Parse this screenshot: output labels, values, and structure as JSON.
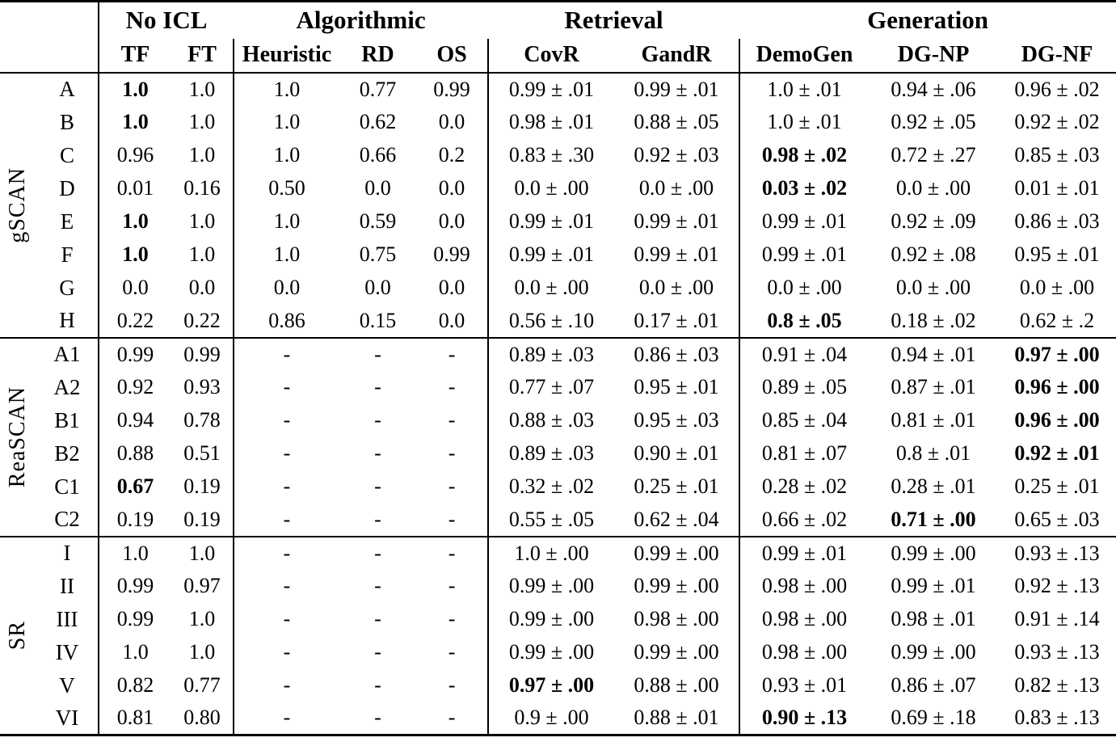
{
  "colors": {
    "text": "#000000",
    "background": "#ffffff",
    "rule": "#000000"
  },
  "table": {
    "col_groups": [
      {
        "label": "No ICL",
        "span": 2
      },
      {
        "label": "Algorithmic",
        "span": 3
      },
      {
        "label": "Retrieval",
        "span": 2
      },
      {
        "label": "Generation",
        "span": 3
      }
    ],
    "columns": [
      "TF",
      "FT",
      "Heuristic",
      "RD",
      "OS",
      "CovR",
      "GandR",
      "DemoGen",
      "DG-NP",
      "DG-NF"
    ],
    "sections": [
      {
        "label": "gSCAN",
        "rows": [
          {
            "label": "A",
            "cells": [
              "1.0",
              "1.0",
              "1.0",
              "0.77",
              "0.99",
              "0.99 ± .01",
              "0.99 ± .01",
              "1.0 ± .01",
              "0.94 ± .06",
              "0.96 ± .02"
            ],
            "bold": [
              0
            ]
          },
          {
            "label": "B",
            "cells": [
              "1.0",
              "1.0",
              "1.0",
              "0.62",
              "0.0",
              "0.98 ± .01",
              "0.88 ± .05",
              "1.0 ± .01",
              "0.92 ± .05",
              "0.92 ± .02"
            ],
            "bold": [
              0
            ]
          },
          {
            "label": "C",
            "cells": [
              "0.96",
              "1.0",
              "1.0",
              "0.66",
              "0.2",
              "0.83 ± .30",
              "0.92 ± .03",
              "0.98 ± .02",
              "0.72 ± .27",
              "0.85 ± .03"
            ],
            "bold": [
              7
            ]
          },
          {
            "label": "D",
            "cells": [
              "0.01",
              "0.16",
              "0.50",
              "0.0",
              "0.0",
              "0.0 ± .00",
              "0.0 ± .00",
              "0.03 ± .02",
              "0.0 ± .00",
              "0.01 ± .01"
            ],
            "bold": [
              7
            ]
          },
          {
            "label": "E",
            "cells": [
              "1.0",
              "1.0",
              "1.0",
              "0.59",
              "0.0",
              "0.99 ± .01",
              "0.99 ± .01",
              "0.99 ± .01",
              "0.92 ± .09",
              "0.86 ± .03"
            ],
            "bold": [
              0
            ]
          },
          {
            "label": "F",
            "cells": [
              "1.0",
              "1.0",
              "1.0",
              "0.75",
              "0.99",
              "0.99 ± .01",
              "0.99 ± .01",
              "0.99 ± .01",
              "0.92 ± .08",
              "0.95 ± .01"
            ],
            "bold": [
              0
            ]
          },
          {
            "label": "G",
            "cells": [
              "0.0",
              "0.0",
              "0.0",
              "0.0",
              "0.0",
              "0.0 ± .00",
              "0.0 ± .00",
              "0.0 ± .00",
              "0.0 ± .00",
              "0.0 ± .00"
            ],
            "bold": []
          },
          {
            "label": "H",
            "cells": [
              "0.22",
              "0.22",
              "0.86",
              "0.15",
              "0.0",
              "0.56 ± .10",
              "0.17 ± .01",
              "0.8 ± .05",
              "0.18 ± .02",
              "0.62 ± .2"
            ],
            "bold": [
              7
            ]
          }
        ]
      },
      {
        "label": "ReaSCAN",
        "rows": [
          {
            "label": "A1",
            "cells": [
              "0.99",
              "0.99",
              "-",
              "-",
              "-",
              "0.89 ± .03",
              "0.86 ± .03",
              "0.91 ± .04",
              "0.94 ± .01",
              "0.97 ± .00"
            ],
            "bold": [
              9
            ]
          },
          {
            "label": "A2",
            "cells": [
              "0.92",
              "0.93",
              "-",
              "-",
              "-",
              "0.77 ± .07",
              "0.95 ± .01",
              "0.89 ± .05",
              "0.87 ± .01",
              "0.96 ± .00"
            ],
            "bold": [
              9
            ]
          },
          {
            "label": "B1",
            "cells": [
              "0.94",
              "0.78",
              "-",
              "-",
              "-",
              "0.88 ± .03",
              "0.95 ± .03",
              "0.85 ± .04",
              "0.81 ± .01",
              "0.96 ± .00"
            ],
            "bold": [
              9
            ]
          },
          {
            "label": "B2",
            "cells": [
              "0.88",
              "0.51",
              "-",
              "-",
              "-",
              "0.89 ± .03",
              "0.90 ± .01",
              "0.81 ± .07",
              "0.8 ± .01",
              "0.92 ± .01"
            ],
            "bold": [
              9
            ]
          },
          {
            "label": "C1",
            "cells": [
              "0.67",
              "0.19",
              "-",
              "-",
              "-",
              "0.32 ± .02",
              "0.25 ± .01",
              "0.28 ± .02",
              "0.28 ± .01",
              "0.25 ± .01"
            ],
            "bold": [
              0
            ]
          },
          {
            "label": "C2",
            "cells": [
              "0.19",
              "0.19",
              "-",
              "-",
              "-",
              "0.55 ± .05",
              "0.62 ± .04",
              "0.66 ± .02",
              "0.71 ± .00",
              "0.65 ± .03"
            ],
            "bold": [
              8
            ]
          }
        ]
      },
      {
        "label": "SR",
        "rows": [
          {
            "label": "I",
            "cells": [
              "1.0",
              "1.0",
              "-",
              "-",
              "-",
              "1.0 ± .00",
              "0.99 ± .00",
              "0.99 ± .01",
              "0.99 ± .00",
              "0.93 ± .13"
            ],
            "bold": []
          },
          {
            "label": "II",
            "cells": [
              "0.99",
              "0.97",
              "-",
              "-",
              "-",
              "0.99 ± .00",
              "0.99 ± .00",
              "0.98 ± .00",
              "0.99 ± .01",
              "0.92 ± .13"
            ],
            "bold": []
          },
          {
            "label": "III",
            "cells": [
              "0.99",
              "1.0",
              "-",
              "-",
              "-",
              "0.99 ± .00",
              "0.98 ± .00",
              "0.98 ± .00",
              "0.98 ± .01",
              "0.91 ± .14"
            ],
            "bold": []
          },
          {
            "label": "IV",
            "cells": [
              "1.0",
              "1.0",
              "-",
              "-",
              "-",
              "0.99 ± .00",
              "0.99 ± .00",
              "0.98 ± .00",
              "0.99 ± .00",
              "0.93 ± .13"
            ],
            "bold": []
          },
          {
            "label": "V",
            "cells": [
              "0.82",
              "0.77",
              "-",
              "-",
              "-",
              "0.97 ± .00",
              "0.88 ± .00",
              "0.93 ± .01",
              "0.86 ± .07",
              "0.82 ± .13"
            ],
            "bold": [
              5
            ]
          },
          {
            "label": "VI",
            "cells": [
              "0.81",
              "0.80",
              "-",
              "-",
              "-",
              "0.9 ± .00",
              "0.88 ± .01",
              "0.90 ± .13",
              "0.69 ± .18",
              "0.83 ± .13"
            ],
            "bold": [
              7
            ]
          }
        ]
      }
    ]
  }
}
